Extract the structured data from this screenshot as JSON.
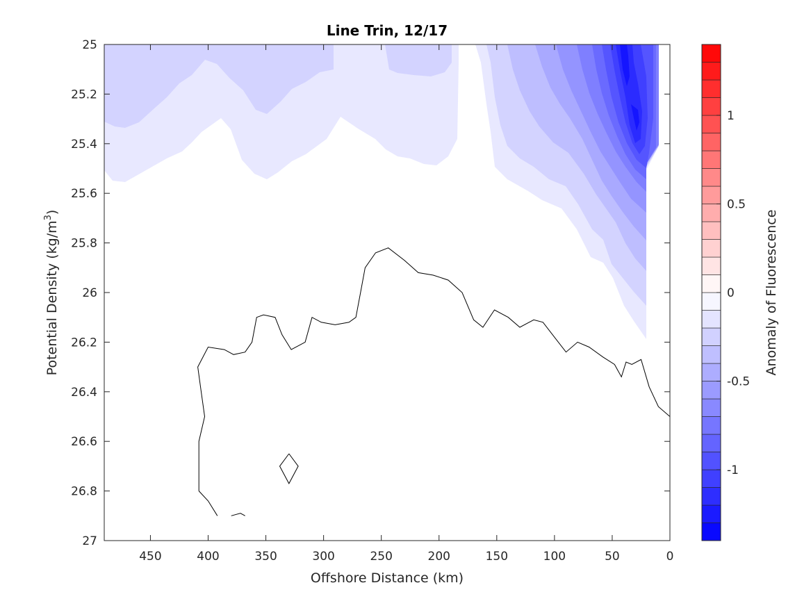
{
  "chart_data": {
    "type": "contour",
    "title": "Line Trin, 12/17",
    "xlabel": "Offshore Distance (km)",
    "ylabel_main": "Potential Density (kg/m",
    "ylabel_sup": "3",
    "ylabel_close": ")",
    "xlim": [
      490,
      0
    ],
    "ylim": [
      25,
      27
    ],
    "x_reversed": true,
    "y_reversed": true,
    "xticks": [
      450,
      400,
      350,
      300,
      250,
      200,
      150,
      100,
      50,
      0
    ],
    "xtick_labels": [
      "450",
      "400",
      "350",
      "300",
      "250",
      "200",
      "150",
      "100",
      "50",
      "0"
    ],
    "yticks": [
      25,
      25.2,
      25.4,
      25.6,
      25.8,
      26,
      26.2,
      26.4,
      26.6,
      26.8,
      27
    ],
    "ytick_labels": [
      "25",
      "25.2",
      "25.4",
      "25.6",
      "25.8",
      "26",
      "26.2",
      "26.4",
      "26.6",
      "26.8",
      "27"
    ],
    "colorbar": {
      "label": "Anomaly of Fluorescence",
      "range": [
        -1.4,
        1.4
      ],
      "ticks": [
        1,
        0.5,
        0,
        -0.5,
        -1
      ],
      "tick_labels": [
        "1",
        "0.5",
        "0",
        "-0.5",
        "-1"
      ],
      "levels": [
        -1.4,
        -1.3,
        -1.2,
        -1.1,
        -1.0,
        -0.9,
        -0.8,
        -0.7,
        -0.6,
        -0.5,
        -0.4,
        -0.3,
        -0.2,
        -0.1,
        0.0,
        0.1,
        0.2,
        0.3,
        0.4,
        0.5,
        0.6,
        0.7,
        0.8,
        0.9,
        1.0,
        1.1,
        1.2,
        1.3,
        1.4
      ],
      "low_color": "#0000ff",
      "mid_color": "#ffffff",
      "high_color": "#ff0000"
    },
    "zero_contour": [
      [
        408,
        26.8
      ],
      [
        400,
        26.84
      ],
      [
        392,
        26.9
      ],
      [
        380,
        26.9
      ],
      [
        372,
        26.89
      ],
      [
        368,
        26.9
      ],
      [
        408,
        26.8
      ],
      [
        408,
        26.6
      ],
      [
        403,
        26.5
      ],
      [
        406,
        26.4
      ],
      [
        409,
        26.3
      ],
      [
        400,
        26.22
      ],
      [
        386,
        26.23
      ],
      [
        378,
        26.25
      ],
      [
        368,
        26.24
      ],
      [
        362,
        26.2
      ],
      [
        358,
        26.1
      ],
      [
        352,
        26.09
      ],
      [
        342,
        26.1
      ],
      [
        336,
        26.17
      ],
      [
        328,
        26.23
      ],
      [
        316,
        26.2
      ],
      [
        310,
        26.1
      ],
      [
        302,
        26.12
      ],
      [
        290,
        26.13
      ],
      [
        278,
        26.12
      ],
      [
        272,
        26.1
      ],
      [
        268,
        26.0
      ],
      [
        264,
        25.9
      ],
      [
        255,
        25.84
      ],
      [
        244,
        25.82
      ],
      [
        230,
        25.87
      ],
      [
        218,
        25.92
      ],
      [
        205,
        25.93
      ],
      [
        192,
        25.95
      ],
      [
        180,
        26.0
      ],
      [
        170,
        26.11
      ],
      [
        162,
        26.14
      ],
      [
        152,
        26.07
      ],
      [
        140,
        26.1
      ],
      [
        130,
        26.14
      ],
      [
        118,
        26.11
      ],
      [
        110,
        26.12
      ],
      [
        100,
        26.18
      ],
      [
        90,
        26.24
      ],
      [
        80,
        26.2
      ],
      [
        70,
        26.22
      ],
      [
        58,
        26.26
      ],
      [
        48,
        26.29
      ],
      [
        42,
        26.34
      ],
      [
        38,
        26.28
      ],
      [
        33,
        26.29
      ],
      [
        25,
        26.27
      ],
      [
        18,
        26.38
      ],
      [
        10,
        26.46
      ],
      [
        0,
        26.5
      ]
    ],
    "small_contour": [
      [
        330,
        26.65
      ],
      [
        322,
        26.7
      ],
      [
        330,
        26.77
      ],
      [
        338,
        26.7
      ],
      [
        330,
        26.65
      ]
    ]
  }
}
